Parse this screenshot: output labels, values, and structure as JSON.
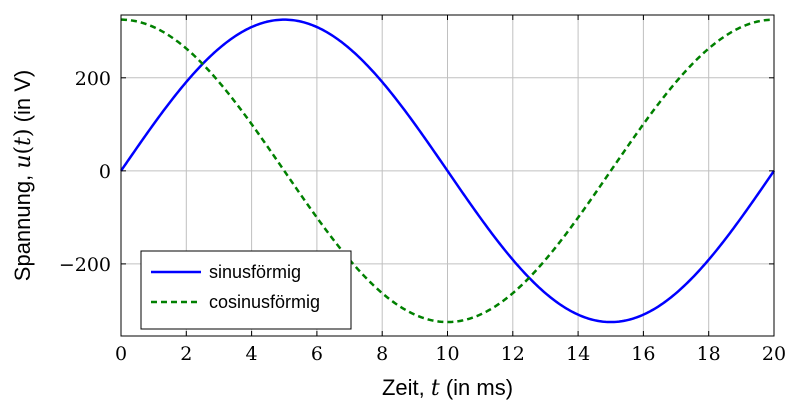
{
  "chart_data": {
    "type": "line",
    "xlabel": {
      "pre": "Zeit, ",
      "var": "t",
      "post": " (in ms)"
    },
    "ylabel": {
      "pre": "Spannung, ",
      "var": "u",
      "mid": "(",
      "var2": "t",
      "mid2": ")",
      "post": " (in V)"
    },
    "xlim": [
      0,
      20
    ],
    "ylim": [
      -355,
      335
    ],
    "x_ticks": [
      0,
      2,
      4,
      6,
      8,
      10,
      12,
      14,
      16,
      18,
      20
    ],
    "y_ticks": [
      -200,
      0,
      200
    ],
    "y_tick_labels": [
      "−200",
      "0",
      "200"
    ],
    "grid": true,
    "legend_position": "bottom-left",
    "series": [
      {
        "name": "sinusförmig",
        "style": "solid",
        "color": "#0000ff",
        "amplitude": 325,
        "period_ms": 20,
        "x": [
          0,
          1,
          2,
          3,
          4,
          5,
          6,
          7,
          8,
          9,
          10,
          11,
          12,
          13,
          14,
          15,
          16,
          17,
          18,
          19,
          20
        ],
        "y": [
          0,
          100,
          191,
          263,
          309,
          325,
          309,
          263,
          191,
          100,
          0,
          -100,
          -191,
          -263,
          -309,
          -325,
          -309,
          -263,
          -191,
          -100,
          0
        ]
      },
      {
        "name": "cosinusförmig",
        "style": "dashed",
        "color": "#008000",
        "amplitude": 325,
        "period_ms": 20,
        "x": [
          0,
          1,
          2,
          3,
          4,
          5,
          6,
          7,
          8,
          9,
          10,
          11,
          12,
          13,
          14,
          15,
          16,
          17,
          18,
          19,
          20
        ],
        "y": [
          325,
          309,
          263,
          191,
          100,
          0,
          -100,
          -191,
          -263,
          -309,
          -325,
          -309,
          -263,
          -191,
          -100,
          0,
          100,
          191,
          263,
          309,
          325
        ]
      }
    ]
  }
}
